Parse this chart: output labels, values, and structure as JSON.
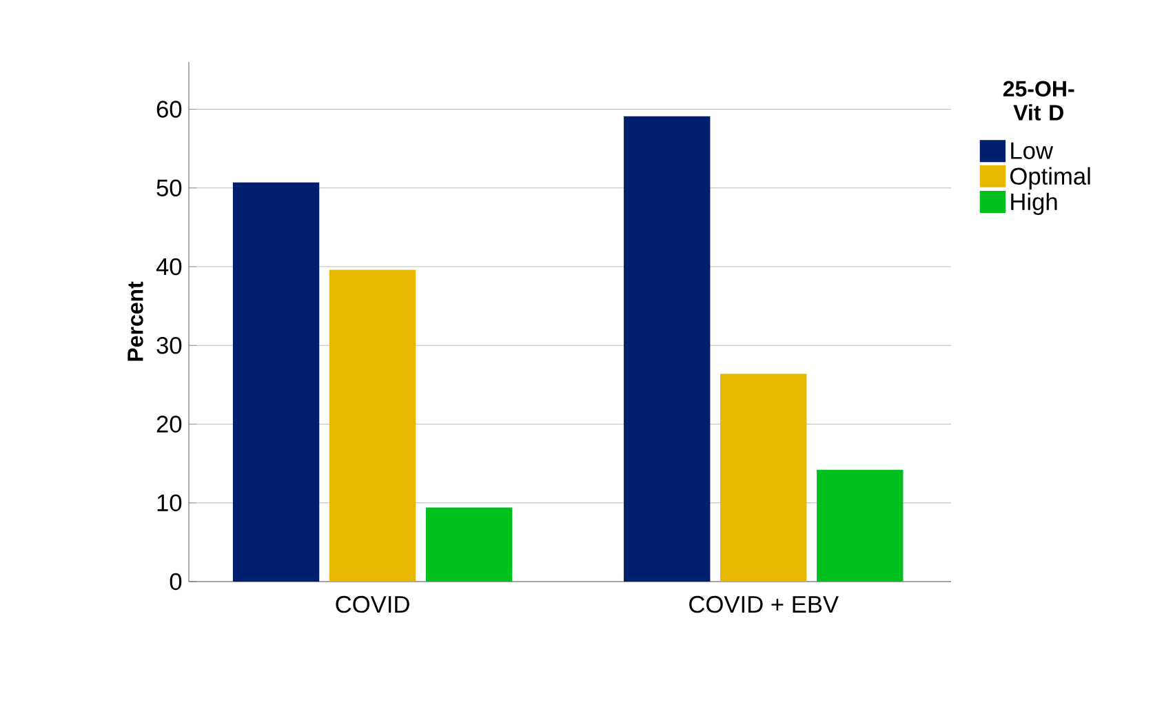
{
  "chart_data": {
    "type": "bar",
    "ylabel": "Percent",
    "legend_title": "25-OH-Vit D",
    "categories": [
      "COVID",
      "COVID + EBV"
    ],
    "series": [
      {
        "name": "Low",
        "color": "#001f6e",
        "values": [
          50.7,
          59.1
        ]
      },
      {
        "name": "Optimal",
        "color": "#e8b800",
        "values": [
          39.6,
          26.4
        ]
      },
      {
        "name": "High",
        "color": "#00c01e",
        "values": [
          9.4,
          14.2
        ]
      }
    ],
    "ylim": [
      0,
      66
    ],
    "yticks": [
      0,
      10,
      20,
      30,
      40,
      50,
      60
    ],
    "grid": "y",
    "legend": "right"
  }
}
